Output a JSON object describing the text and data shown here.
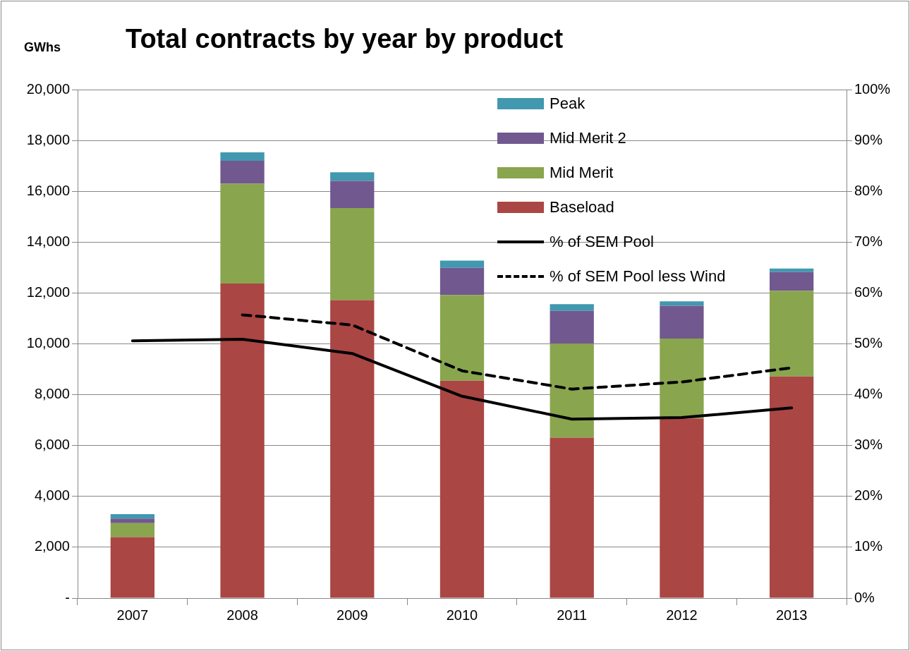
{
  "chart_data": {
    "type": "bar",
    "title": "Total contracts by year by product",
    "ylabel": "GWhs",
    "categories": [
      "2007",
      "2008",
      "2009",
      "2010",
      "2011",
      "2012",
      "2013"
    ],
    "stacked": true,
    "grid": "y",
    "legend": "top right",
    "marker": "none",
    "ylim": [
      0,
      20000
    ],
    "yticks": [
      {
        "value": 0,
        "label": "-"
      },
      {
        "value": 2000,
        "label": "2,000"
      },
      {
        "value": 4000,
        "label": "4,000"
      },
      {
        "value": 6000,
        "label": "6,000"
      },
      {
        "value": 8000,
        "label": "8,000"
      },
      {
        "value": 10000,
        "label": "10,000"
      },
      {
        "value": 12000,
        "label": "12,000"
      },
      {
        "value": 14000,
        "label": "14,000"
      },
      {
        "value": 16000,
        "label": "16,000"
      },
      {
        "value": 18000,
        "label": "18,000"
      },
      {
        "value": 20000,
        "label": "20,000"
      }
    ],
    "y2lim": [
      0,
      100
    ],
    "y2ticks": [
      {
        "value": 0,
        "label": "0%"
      },
      {
        "value": 10,
        "label": "10%"
      },
      {
        "value": 20,
        "label": "20%"
      },
      {
        "value": 30,
        "label": "30%"
      },
      {
        "value": 40,
        "label": "40%"
      },
      {
        "value": 50,
        "label": "50%"
      },
      {
        "value": 60,
        "label": "60%"
      },
      {
        "value": 70,
        "label": "70%"
      },
      {
        "value": 80,
        "label": "80%"
      },
      {
        "value": 90,
        "label": "90%"
      },
      {
        "value": 100,
        "label": "100%"
      }
    ],
    "series": [
      {
        "name": "Baseload",
        "color": "#aa4643",
        "values": [
          2400,
          12370,
          11720,
          8550,
          6310,
          7070,
          8720
        ]
      },
      {
        "name": "Mid Merit",
        "color": "#89a54e",
        "values": [
          550,
          3930,
          3620,
          3370,
          3700,
          3140,
          3370
        ]
      },
      {
        "name": "Mid Merit 2",
        "color": "#71588f",
        "values": [
          180,
          900,
          1070,
          1070,
          1290,
          1290,
          730
        ]
      },
      {
        "name": "Peak",
        "color": "#4198af",
        "values": [
          170,
          330,
          340,
          280,
          260,
          170,
          140
        ]
      },
      {
        "name": "% of SEM Pool",
        "type": "line",
        "axis": "y2",
        "color": "#000000",
        "line_style": "solid",
        "values": [
          50.6,
          50.9,
          48.1,
          39.7,
          35.2,
          35.5,
          37.4
        ]
      },
      {
        "name": "% of SEM Pool less Wind",
        "type": "line",
        "axis": "y2",
        "color": "#000000",
        "line_style": "dashed",
        "values": [
          null,
          55.7,
          53.7,
          44.7,
          41.1,
          42.5,
          45.3
        ]
      }
    ]
  }
}
